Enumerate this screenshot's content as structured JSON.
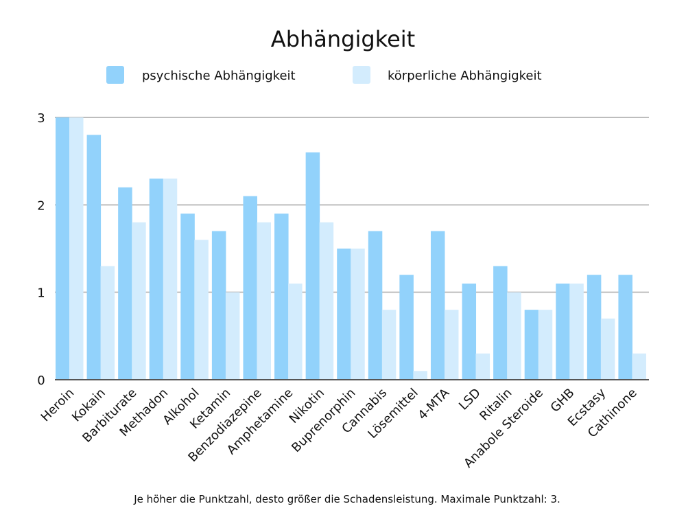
{
  "chart_data": {
    "type": "bar",
    "title": "Abhängigkeit",
    "footnote": "Je höher die Punktzahl, desto größer die Schadensleistung. Maximale Punktzahl: 3.",
    "xlabel": "",
    "ylabel": "",
    "ylim": [
      0,
      3
    ],
    "yticks": [
      0,
      1,
      2,
      3
    ],
    "grid": true,
    "legend_position": "top",
    "categories": [
      "Heroin",
      "Kokain",
      "Barbiturate",
      "Methadon",
      "Alkohol",
      "Ketamin",
      "Benzodiazepine",
      "Amphetamine",
      "Nikotin",
      "Buprenorphin",
      "Cannabis",
      "Lösemittel",
      "4-MTA",
      "LSD",
      "Ritalin",
      "Anabole Steroide",
      "GHB",
      "Ecstasy",
      "Cathinone"
    ],
    "series": [
      {
        "name": "psychische Abhängigkeit",
        "color": "#92d2fb",
        "values": [
          3.0,
          2.8,
          2.2,
          2.3,
          1.9,
          1.7,
          2.1,
          1.9,
          2.6,
          1.5,
          1.7,
          1.2,
          1.7,
          1.1,
          1.3,
          0.8,
          1.1,
          1.2,
          1.2
        ]
      },
      {
        "name": "körperliche Abhängigkeit",
        "color": "#d3ecfd",
        "values": [
          3.0,
          1.3,
          1.8,
          2.3,
          1.6,
          1.0,
          1.8,
          1.1,
          1.8,
          1.5,
          0.8,
          0.1,
          0.8,
          0.3,
          1.0,
          0.8,
          1.1,
          0.7,
          0.3
        ]
      }
    ],
    "colors": {
      "gridline": "#bdbdbd",
      "axis": "#555555"
    }
  }
}
